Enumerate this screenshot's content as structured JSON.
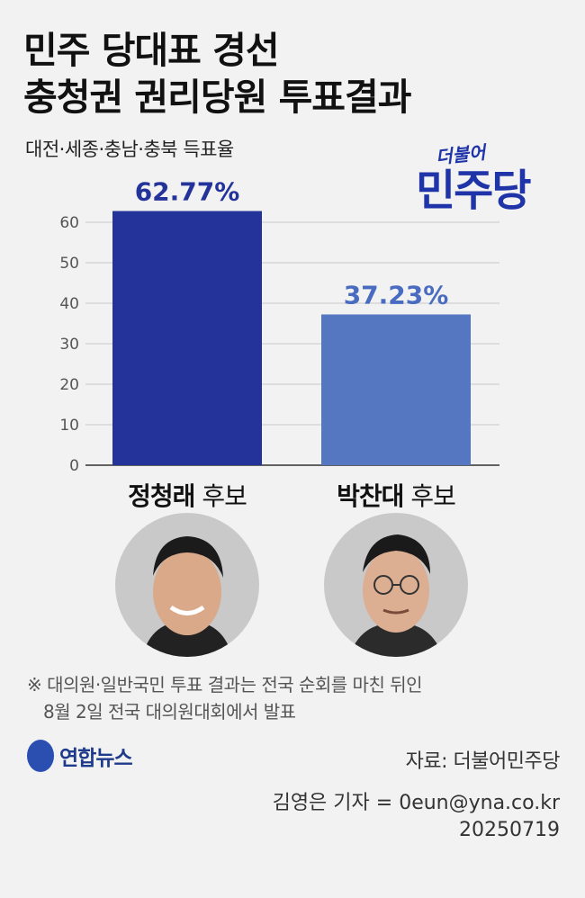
{
  "title": {
    "line1": "민주 당대표 경선",
    "line2": "충청권 권리당원 투표결과"
  },
  "subtitle": "대전·세종·충남·충북 득표율",
  "logo": {
    "small": "더불어",
    "big": "민주당"
  },
  "colors": {
    "bar1": "#24339a",
    "bar2": "#5577c2",
    "label1": "#24339a",
    "label2": "#4a6cc0"
  },
  "chart_data": {
    "type": "bar",
    "categories": [
      "정청래 후보",
      "박찬대 후보"
    ],
    "values": [
      62.77,
      37.23
    ],
    "value_labels": [
      "62.77%",
      "37.23%"
    ],
    "yticks": [
      0,
      10,
      20,
      30,
      40,
      50,
      60
    ],
    "ylim": [
      0,
      65
    ],
    "grid": true
  },
  "candidates": [
    {
      "name": "정청래",
      "suffix": "후보"
    },
    {
      "name": "박찬대",
      "suffix": "후보"
    }
  ],
  "note": {
    "line1": "※ 대의원·일반국민 투표 결과는 전국 순회를 마친 뒤인",
    "line2": "8월 2일 전국 대의원대회에서 발표"
  },
  "agency": "연합뉴스",
  "source": "자료: 더불어민주당",
  "credit": {
    "reporter": "김영은 기자 = 0eun@yna.co.kr",
    "date": "20250719"
  }
}
